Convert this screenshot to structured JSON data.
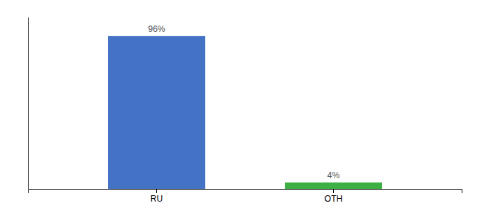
{
  "chart_data": {
    "type": "bar",
    "categories": [
      "RU",
      "OTH"
    ],
    "values": [
      96,
      4
    ],
    "value_labels": [
      "96%",
      "4%"
    ],
    "colors": [
      "#4472c4",
      "#3cb043"
    ],
    "ylim": [
      0,
      108
    ],
    "data_labels": true,
    "tick_labels": "x"
  }
}
